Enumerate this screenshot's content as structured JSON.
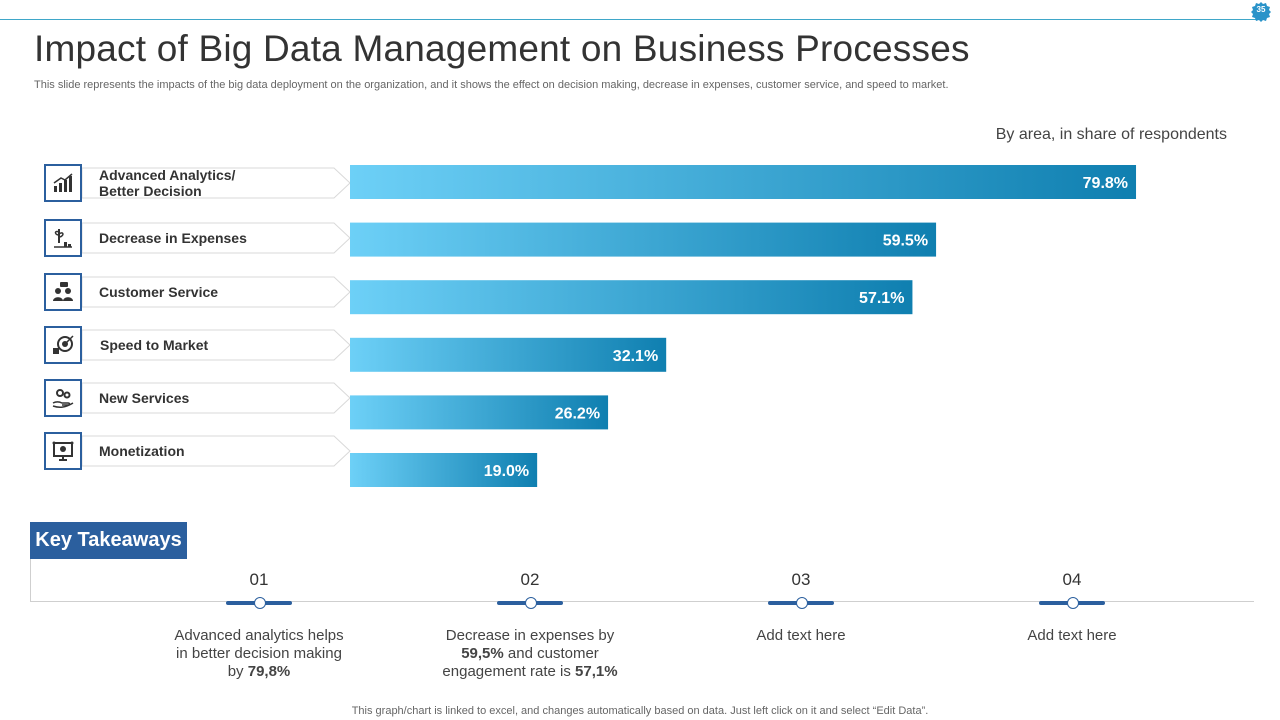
{
  "page_number": "35",
  "title": "Impact of Big Data Management on Business Processes",
  "subtitle": "This slide represents the impacts of the big data deployment on the organization, and it shows the effect on decision making, decrease in expenses, customer service, and speed to market.",
  "chart_data": {
    "type": "bar",
    "orientation": "horizontal",
    "note": "By area, in share of respondents",
    "categories": [
      "Advanced Analytics/ Better Decision",
      "Decrease in Expenses",
      "Customer  Service",
      "Speed to Market",
      "New Services",
      "Monetization"
    ],
    "values": [
      79.8,
      59.5,
      57.1,
      32.1,
      26.2,
      19.0
    ],
    "value_labels": [
      "79.8%",
      "59.5%",
      "57.1%",
      "32.1%",
      "26.2%",
      "19.0%"
    ],
    "xlim": [
      0,
      100
    ],
    "unit": "%",
    "colors": {
      "bar_start": "#6dd0f7",
      "bar_end": "#0f7fb0",
      "label": "#ffffff"
    }
  },
  "categories_display": [
    {
      "line1": "Advanced Analytics/",
      "line2": "Better Decision",
      "icon": "analytics-chart-icon"
    },
    {
      "line1": "Decrease in Expenses",
      "line2": "",
      "icon": "expense-decrease-icon"
    },
    {
      "line1": "Customer  Service",
      "line2": "",
      "icon": "customer-service-icon"
    },
    {
      "line1": "Speed to Market",
      "line2": "",
      "icon": "target-speed-icon"
    },
    {
      "line1": "New Services",
      "line2": "",
      "icon": "gears-hand-icon"
    },
    {
      "line1": "Monetization",
      "line2": "",
      "icon": "monetization-screen-icon"
    }
  ],
  "key_takeaways": {
    "heading": "Key Takeaways",
    "items": [
      {
        "num": "01",
        "line1": "Advanced analytics helps",
        "line2": "in better decision making",
        "line3_pre": "by ",
        "line3_bold": "79,8%",
        "line3_post": ""
      },
      {
        "num": "02",
        "line1": "Decrease in expenses by",
        "line2_bold": "59,5%",
        "line2_post": " and customer",
        "line3_pre": "engagement rate is ",
        "line3_bold": "57,1%"
      },
      {
        "num": "03",
        "line1": "Add text here"
      },
      {
        "num": "04",
        "line1": "Add text here"
      }
    ]
  },
  "footer": "This graph/chart is linked to excel,  and changes automatically based on data. Just left click on it and select “Edit Data”.",
  "colors": {
    "accent": "#2b5f9e",
    "line": "#3fa7c9"
  }
}
